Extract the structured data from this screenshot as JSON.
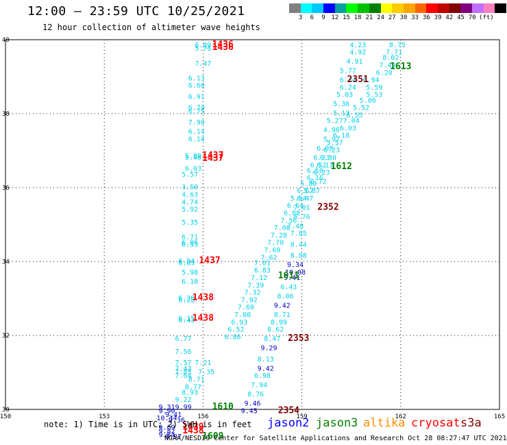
{
  "header": {
    "title": "12:00 – 23:59 UTC 10/25/2021",
    "subtitle": "12 hour collection of altimeter wave heights"
  },
  "colorbar": {
    "swatches": [
      "#808080",
      "#00ffff",
      "#00c8ff",
      "#0000ff",
      "#00a0a0",
      "#00ff00",
      "#00c000",
      "#008000",
      "#ffff00",
      "#ffcc00",
      "#ffa500",
      "#ff6600",
      "#ff0000",
      "#c00000",
      "#800000",
      "#800080",
      "#c070ff",
      "#ff80c0",
      "#000000"
    ],
    "labels": [
      "3",
      "6",
      "9",
      "12",
      "15",
      "18",
      "21",
      "24",
      "27",
      "30",
      "33",
      "36",
      "39",
      "42",
      "45",
      "70",
      "(ft)"
    ]
  },
  "axes": {
    "lon_ticks": [
      "150",
      "153",
      "156",
      "159",
      "162",
      "165"
    ],
    "lat_ticks": [
      "30",
      "32",
      "34",
      "36",
      "38",
      "40"
    ],
    "lon_range": [
      150,
      165
    ],
    "lat_range": [
      30,
      40
    ]
  },
  "colors": {
    "swh_light": "#00d0e8",
    "swh_dark": "#0000c0",
    "jason2": "#0000ff",
    "jason3": "#008000",
    "altika": "#ff8c00",
    "cryosat": "#ff0000",
    "s3a": "#800000"
  },
  "chart_data": {
    "type": "scatter",
    "swh_points": [
      {
        "lon": 156.0,
        "lat": 39.8,
        "v": "6.09",
        "c": "light"
      },
      {
        "lon": 156.0,
        "lat": 39.7,
        "v": "5.76",
        "c": "light"
      },
      {
        "lon": 156.0,
        "lat": 39.3,
        "v": "7.47",
        "c": "light"
      },
      {
        "lon": 155.8,
        "lat": 38.9,
        "v": "6.13",
        "c": "light"
      },
      {
        "lon": 155.8,
        "lat": 38.7,
        "v": "6.60",
        "c": "light"
      },
      {
        "lon": 155.8,
        "lat": 38.4,
        "v": "6.91",
        "c": "light"
      },
      {
        "lon": 155.8,
        "lat": 38.1,
        "v": "6.79",
        "c": "light"
      },
      {
        "lon": 155.8,
        "lat": 38.0,
        "v": "6.75",
        "c": "light"
      },
      {
        "lon": 155.8,
        "lat": 37.7,
        "v": "7.90",
        "c": "light"
      },
      {
        "lon": 155.8,
        "lat": 37.45,
        "v": "6.14",
        "c": "light"
      },
      {
        "lon": 155.8,
        "lat": 37.25,
        "v": "6.14",
        "c": "light"
      },
      {
        "lon": 155.7,
        "lat": 36.8,
        "v": "5.89",
        "c": "light"
      },
      {
        "lon": 155.7,
        "lat": 36.75,
        "v": "5.46",
        "c": "light"
      },
      {
        "lon": 155.7,
        "lat": 36.45,
        "v": "6.03",
        "c": "light"
      },
      {
        "lon": 155.6,
        "lat": 36.3,
        "v": "5.57",
        "c": "light"
      },
      {
        "lon": 155.6,
        "lat": 35.95,
        "v": "3.50",
        "c": "light"
      },
      {
        "lon": 155.6,
        "lat": 35.75,
        "v": "4.63",
        "c": "light"
      },
      {
        "lon": 155.6,
        "lat": 35.55,
        "v": "4.74",
        "c": "light"
      },
      {
        "lon": 155.6,
        "lat": 35.35,
        "v": "5.92",
        "c": "light"
      },
      {
        "lon": 155.6,
        "lat": 35.0,
        "v": "5.35",
        "c": "light"
      },
      {
        "lon": 155.6,
        "lat": 34.6,
        "v": "6.71",
        "c": "light"
      },
      {
        "lon": 155.6,
        "lat": 34.45,
        "v": "6.96",
        "c": "light"
      },
      {
        "lon": 155.6,
        "lat": 34.4,
        "v": "6.53",
        "c": "light"
      },
      {
        "lon": 155.5,
        "lat": 33.95,
        "v": "6.84",
        "c": "light"
      },
      {
        "lon": 155.5,
        "lat": 33.9,
        "v": "6.63",
        "c": "light"
      },
      {
        "lon": 155.6,
        "lat": 33.65,
        "v": "5.98",
        "c": "light"
      },
      {
        "lon": 155.6,
        "lat": 33.4,
        "v": "6.18",
        "c": "light"
      },
      {
        "lon": 155.5,
        "lat": 32.95,
        "v": "6.30",
        "c": "light"
      },
      {
        "lon": 155.5,
        "lat": 32.9,
        "v": "6.28",
        "c": "light"
      },
      {
        "lon": 155.5,
        "lat": 32.4,
        "v": "6.15",
        "c": "light"
      },
      {
        "lon": 155.5,
        "lat": 32.35,
        "v": "6.43",
        "c": "light"
      },
      {
        "lon": 155.4,
        "lat": 31.85,
        "v": "6.77",
        "c": "light"
      },
      {
        "lon": 155.4,
        "lat": 31.5,
        "v": "7.56",
        "c": "light"
      },
      {
        "lon": 155.4,
        "lat": 31.2,
        "v": "7.57",
        "c": "light"
      },
      {
        "lon": 155.4,
        "lat": 31.05,
        "v": "7.43",
        "c": "light"
      },
      {
        "lon": 155.4,
        "lat": 30.95,
        "v": "7.85",
        "c": "light"
      },
      {
        "lon": 155.4,
        "lat": 30.85,
        "v": "7.64",
        "c": "light"
      },
      {
        "lon": 156.0,
        "lat": 31.2,
        "v": "7.21",
        "c": "light"
      },
      {
        "lon": 156.1,
        "lat": 30.95,
        "v": "7.35",
        "c": "light"
      },
      {
        "lon": 155.8,
        "lat": 30.75,
        "v": "8.71",
        "c": "light"
      },
      {
        "lon": 155.7,
        "lat": 30.55,
        "v": "8.77",
        "c": "light"
      },
      {
        "lon": 155.6,
        "lat": 30.4,
        "v": "8.93",
        "c": "light"
      },
      {
        "lon": 155.4,
        "lat": 30.2,
        "v": "9.22",
        "c": "light"
      },
      {
        "lon": 155.4,
        "lat": 30.0,
        "v": "9.99",
        "c": "dark"
      },
      {
        "lon": 154.9,
        "lat": 30.0,
        "v": "9.31",
        "c": "dark"
      },
      {
        "lon": 154.9,
        "lat": 29.9,
        "v": "9.90",
        "c": "dark"
      },
      {
        "lon": 155.1,
        "lat": 29.8,
        "v": "9.41",
        "c": "dark"
      },
      {
        "lon": 154.9,
        "lat": 29.7,
        "v": "10.34",
        "c": "dark"
      },
      {
        "lon": 155.2,
        "lat": 29.65,
        "v": "9.36",
        "c": "dark"
      },
      {
        "lon": 154.9,
        "lat": 29.45,
        "v": "9.69",
        "c": "dark"
      },
      {
        "lon": 154.9,
        "lat": 29.35,
        "v": "9.82",
        "c": "dark"
      },
      {
        "lon": 154.9,
        "lat": 29.25,
        "v": "9.84",
        "c": "dark"
      },
      {
        "lon": 155.1,
        "lat": 29.2,
        "v": "9.97",
        "c": "dark"
      },
      {
        "lon": 160.7,
        "lat": 39.8,
        "v": "4.23",
        "c": "light"
      },
      {
        "lon": 161.9,
        "lat": 39.8,
        "v": "8.75",
        "c": "light"
      },
      {
        "lon": 160.7,
        "lat": 39.6,
        "v": "4.92",
        "c": "light"
      },
      {
        "lon": 161.8,
        "lat": 39.6,
        "v": "7.71",
        "c": "light"
      },
      {
        "lon": 161.7,
        "lat": 39.45,
        "v": "8.02",
        "c": "light"
      },
      {
        "lon": 160.6,
        "lat": 39.35,
        "v": "4.91",
        "c": "light"
      },
      {
        "lon": 161.6,
        "lat": 39.25,
        "v": "7.44",
        "c": "light"
      },
      {
        "lon": 160.4,
        "lat": 39.1,
        "v": "5.77",
        "c": "light"
      },
      {
        "lon": 161.5,
        "lat": 39.05,
        "v": "6.20",
        "c": "light"
      },
      {
        "lon": 160.4,
        "lat": 38.85,
        "v": "6.34",
        "c": "light"
      },
      {
        "lon": 161.1,
        "lat": 38.85,
        "v": "6.94",
        "c": "light"
      },
      {
        "lon": 160.4,
        "lat": 38.65,
        "v": "6.24",
        "c": "light"
      },
      {
        "lon": 161.2,
        "lat": 38.65,
        "v": "5.59",
        "c": "light"
      },
      {
        "lon": 161.2,
        "lat": 38.45,
        "v": "5.53",
        "c": "light"
      },
      {
        "lon": 160.3,
        "lat": 38.45,
        "v": "5.03",
        "c": "light"
      },
      {
        "lon": 161.0,
        "lat": 38.3,
        "v": "5.06",
        "c": "light"
      },
      {
        "lon": 160.2,
        "lat": 38.2,
        "v": "5.36",
        "c": "light"
      },
      {
        "lon": 160.8,
        "lat": 38.1,
        "v": "5.52",
        "c": "light"
      },
      {
        "lon": 160.2,
        "lat": 37.95,
        "v": "5.13",
        "c": "light"
      },
      {
        "lon": 160.6,
        "lat": 37.9,
        "v": "6.55",
        "c": "light"
      },
      {
        "lon": 160.0,
        "lat": 37.75,
        "v": "5.27",
        "c": "light"
      },
      {
        "lon": 160.5,
        "lat": 37.75,
        "v": "7.04",
        "c": "light"
      },
      {
        "lon": 160.4,
        "lat": 37.55,
        "v": "6.03",
        "c": "light"
      },
      {
        "lon": 159.9,
        "lat": 37.5,
        "v": "4.96",
        "c": "light"
      },
      {
        "lon": 160.2,
        "lat": 37.35,
        "v": "6.18",
        "c": "light"
      },
      {
        "lon": 159.9,
        "lat": 37.25,
        "v": "5.97",
        "c": "light"
      },
      {
        "lon": 160.0,
        "lat": 37.15,
        "v": "5.57",
        "c": "light"
      },
      {
        "lon": 159.7,
        "lat": 37.0,
        "v": "6.08",
        "c": "light"
      },
      {
        "lon": 159.9,
        "lat": 36.95,
        "v": "6.23",
        "c": "light"
      },
      {
        "lon": 159.6,
        "lat": 36.75,
        "v": "6.23",
        "c": "light"
      },
      {
        "lon": 159.8,
        "lat": 36.75,
        "v": "6.30",
        "c": "light"
      },
      {
        "lon": 159.5,
        "lat": 36.55,
        "v": "6.51",
        "c": "light"
      },
      {
        "lon": 159.7,
        "lat": 36.55,
        "v": "6.13",
        "c": "light"
      },
      {
        "lon": 159.4,
        "lat": 36.4,
        "v": "6.56",
        "c": "light"
      },
      {
        "lon": 159.6,
        "lat": 36.35,
        "v": "6.23",
        "c": "light"
      },
      {
        "lon": 159.4,
        "lat": 36.2,
        "v": "6.16",
        "c": "light"
      },
      {
        "lon": 159.5,
        "lat": 36.1,
        "v": "6.72",
        "c": "light"
      },
      {
        "lon": 159.2,
        "lat": 36.05,
        "v": "5.80",
        "c": "light"
      },
      {
        "lon": 159.3,
        "lat": 35.85,
        "v": "5.87",
        "c": "light"
      },
      {
        "lon": 159.1,
        "lat": 35.85,
        "v": "6.67",
        "c": "light"
      },
      {
        "lon": 158.9,
        "lat": 35.65,
        "v": "5.94",
        "c": "light"
      },
      {
        "lon": 159.1,
        "lat": 35.65,
        "v": "6.47",
        "c": "light"
      },
      {
        "lon": 158.8,
        "lat": 35.45,
        "v": "6.64",
        "c": "light"
      },
      {
        "lon": 159.0,
        "lat": 35.4,
        "v": "7.01",
        "c": "light"
      },
      {
        "lon": 158.7,
        "lat": 35.25,
        "v": "6.88",
        "c": "light"
      },
      {
        "lon": 159.0,
        "lat": 35.15,
        "v": "6.76",
        "c": "light"
      },
      {
        "lon": 158.6,
        "lat": 35.05,
        "v": "7.56",
        "c": "light"
      },
      {
        "lon": 158.8,
        "lat": 34.9,
        "v": "7.48",
        "c": "light"
      },
      {
        "lon": 158.4,
        "lat": 34.85,
        "v": "7.06",
        "c": "light"
      },
      {
        "lon": 158.9,
        "lat": 34.7,
        "v": "7.85",
        "c": "light"
      },
      {
        "lon": 158.3,
        "lat": 34.65,
        "v": "7.28",
        "c": "light"
      },
      {
        "lon": 158.2,
        "lat": 34.45,
        "v": "7.70",
        "c": "light"
      },
      {
        "lon": 158.9,
        "lat": 34.4,
        "v": "8.44",
        "c": "light"
      },
      {
        "lon": 158.1,
        "lat": 34.25,
        "v": "7.69",
        "c": "light"
      },
      {
        "lon": 158.0,
        "lat": 34.05,
        "v": "7.62",
        "c": "light"
      },
      {
        "lon": 158.9,
        "lat": 34.1,
        "v": "8.08",
        "c": "light"
      },
      {
        "lon": 157.8,
        "lat": 33.9,
        "v": "7.01",
        "c": "light"
      },
      {
        "lon": 158.8,
        "lat": 33.85,
        "v": "9.34",
        "c": "dark"
      },
      {
        "lon": 157.8,
        "lat": 33.7,
        "v": "6.83",
        "c": "light"
      },
      {
        "lon": 158.8,
        "lat": 33.65,
        "v": "10.08",
        "c": "dark"
      },
      {
        "lon": 157.7,
        "lat": 33.5,
        "v": "7.12",
        "c": "light"
      },
      {
        "lon": 158.7,
        "lat": 33.5,
        "v": "9.41",
        "c": "dark"
      },
      {
        "lon": 157.6,
        "lat": 33.3,
        "v": "7.39",
        "c": "light"
      },
      {
        "lon": 158.6,
        "lat": 33.25,
        "v": "6.43",
        "c": "light"
      },
      {
        "lon": 157.5,
        "lat": 33.1,
        "v": "7.32",
        "c": "light"
      },
      {
        "lon": 158.5,
        "lat": 33.0,
        "v": "8.06",
        "c": "light"
      },
      {
        "lon": 157.4,
        "lat": 32.9,
        "v": "7.92",
        "c": "light"
      },
      {
        "lon": 158.4,
        "lat": 32.75,
        "v": "9.42",
        "c": "dark"
      },
      {
        "lon": 157.3,
        "lat": 32.7,
        "v": "7.60",
        "c": "light"
      },
      {
        "lon": 157.2,
        "lat": 32.5,
        "v": "7.08",
        "c": "light"
      },
      {
        "lon": 158.4,
        "lat": 32.5,
        "v": "8.71",
        "c": "light"
      },
      {
        "lon": 157.1,
        "lat": 32.3,
        "v": "6.93",
        "c": "light"
      },
      {
        "lon": 158.3,
        "lat": 32.3,
        "v": "8.99",
        "c": "light"
      },
      {
        "lon": 157.0,
        "lat": 32.1,
        "v": "6.52",
        "c": "light"
      },
      {
        "lon": 158.2,
        "lat": 32.1,
        "v": "8.62",
        "c": "light"
      },
      {
        "lon": 156.9,
        "lat": 31.9,
        "v": "6.86",
        "c": "light"
      },
      {
        "lon": 158.1,
        "lat": 31.85,
        "v": "8.47",
        "c": "light"
      },
      {
        "lon": 158.0,
        "lat": 31.6,
        "v": "9.29",
        "c": "dark"
      },
      {
        "lon": 157.9,
        "lat": 31.3,
        "v": "8.13",
        "c": "light"
      },
      {
        "lon": 157.9,
        "lat": 31.05,
        "v": "9.42",
        "c": "dark"
      },
      {
        "lon": 157.8,
        "lat": 30.85,
        "v": "6.98",
        "c": "light"
      },
      {
        "lon": 157.7,
        "lat": 30.6,
        "v": "7.94",
        "c": "light"
      },
      {
        "lon": 157.6,
        "lat": 30.35,
        "v": "8.76",
        "c": "light"
      },
      {
        "lon": 157.5,
        "lat": 30.1,
        "v": "9.46",
        "c": "dark"
      },
      {
        "lon": 157.4,
        "lat": 29.9,
        "v": "9.45",
        "c": "dark"
      }
    ],
    "pass_labels": [
      {
        "lon": 156.6,
        "lat": 39.8,
        "t": "1436",
        "sat": "cryosat"
      },
      {
        "lon": 156.6,
        "lat": 39.72,
        "t": "1436",
        "sat": "cryosat"
      },
      {
        "lon": 156.3,
        "lat": 36.8,
        "t": "1437",
        "sat": "cryosat"
      },
      {
        "lon": 156.3,
        "lat": 36.72,
        "t": "1437",
        "sat": "cryosat"
      },
      {
        "lon": 156.2,
        "lat": 33.95,
        "t": "1437",
        "sat": "cryosat"
      },
      {
        "lon": 156.0,
        "lat": 32.95,
        "t": "1438",
        "sat": "cryosat"
      },
      {
        "lon": 156.0,
        "lat": 32.4,
        "t": "1438",
        "sat": "cryosat"
      },
      {
        "lon": 155.7,
        "lat": 29.45,
        "t": "1439",
        "sat": "cryosat"
      },
      {
        "lon": 155.7,
        "lat": 29.35,
        "t": "1438",
        "sat": "cryosat"
      },
      {
        "lon": 162.0,
        "lat": 39.2,
        "t": "1613",
        "sat": "jason3"
      },
      {
        "lon": 160.7,
        "lat": 38.85,
        "t": "2351",
        "sat": "s3a"
      },
      {
        "lon": 160.2,
        "lat": 36.5,
        "t": "1612",
        "sat": "jason3"
      },
      {
        "lon": 159.8,
        "lat": 35.4,
        "t": "2352",
        "sat": "s3a"
      },
      {
        "lon": 158.6,
        "lat": 33.55,
        "t": "1611",
        "sat": "jason3"
      },
      {
        "lon": 158.9,
        "lat": 31.85,
        "t": "2353",
        "sat": "s3a"
      },
      {
        "lon": 156.6,
        "lat": 30.0,
        "t": "1610",
        "sat": "jason3"
      },
      {
        "lon": 158.6,
        "lat": 29.9,
        "t": "2354",
        "sat": "s3a"
      },
      {
        "lon": 156.3,
        "lat": 29.2,
        "t": "1609",
        "sat": "jason3"
      }
    ]
  },
  "footer": {
    "note": "note: 1) Time is in UTC; 2) SWH is in feet",
    "credit": "NOAA/NESDIS Center for Satellite Applications and Research   Oct 28 08:27:47 UTC 2021",
    "satellites": [
      {
        "name": "jason2",
        "color": "#0000ff"
      },
      {
        "name": "jason3",
        "color": "#008000"
      },
      {
        "name": "altika",
        "color": "#ff8c00"
      },
      {
        "name": "cryosat",
        "color": "#ff0000"
      },
      {
        "name": "s3a",
        "color": "#800000"
      }
    ]
  }
}
